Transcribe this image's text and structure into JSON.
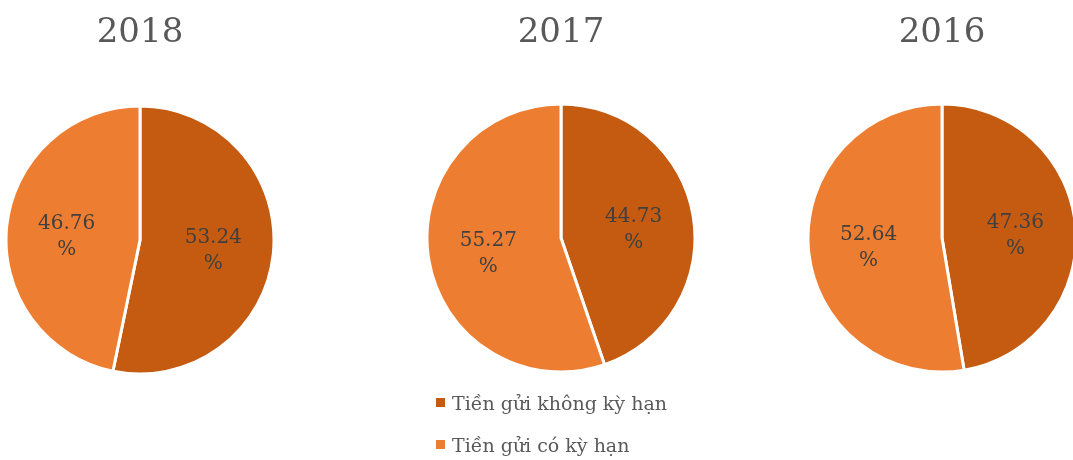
{
  "chart_data": [
    {
      "type": "pie",
      "title": "2018",
      "categories": [
        null,
        null
      ],
      "values": [
        53.24,
        46.76
      ],
      "colors": [
        "#c55a11",
        "#ed7d31"
      ],
      "value_labels": [
        "53.24%",
        "46.76%"
      ],
      "legend": false
    },
    {
      "type": "pie",
      "title": "2017",
      "categories": [
        "Tiền gửi không kỳ hạn",
        "Tiền gửi có kỳ hạn"
      ],
      "values": [
        44.73,
        55.27
      ],
      "colors": [
        "#c55a11",
        "#ed7d31"
      ],
      "value_labels": [
        "44.73%",
        "55.27%"
      ],
      "legend": "bottom"
    },
    {
      "type": "pie",
      "title": "2016",
      "categories": [
        null,
        null
      ],
      "values": [
        47.36,
        52.64
      ],
      "colors": [
        "#c55a11",
        "#ed7d31"
      ],
      "value_labels": [
        "47.36%",
        "52.64%"
      ],
      "legend": false
    }
  ]
}
